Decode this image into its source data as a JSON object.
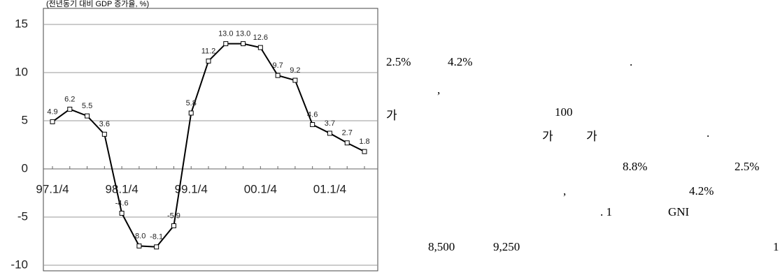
{
  "chart_data": {
    "type": "line",
    "subtitle": "(전년동기 대비 GDP 증가율, %)",
    "categories": [
      "97.1/4",
      null,
      null,
      null,
      "98.1/4",
      null,
      null,
      null,
      "99.1/4",
      null,
      null,
      null,
      "00.1/4",
      null,
      null,
      null,
      "01.1/4",
      null,
      null
    ],
    "series": [
      {
        "name": "GDP",
        "color": "#000000",
        "values": [
          4.9,
          6.2,
          5.5,
          3.6,
          -4.6,
          -8.0,
          -8.1,
          -5.9,
          5.8,
          11.2,
          13.0,
          13.0,
          12.6,
          9.7,
          9.2,
          4.6,
          3.7,
          2.7,
          1.8
        ],
        "value_labels": [
          "4.9",
          "6.2",
          "5.5",
          "3.6",
          "-4.6",
          "-8.0",
          "-8.1",
          "-5.9",
          "5.8",
          "11.2",
          "13.0",
          "13.0",
          "12.6",
          "9.7",
          "9.2",
          "4.6",
          "3.7",
          "2.7",
          "1.8"
        ]
      }
    ],
    "ylim": [
      -10,
      15
    ],
    "yticks": [
      -10,
      -5,
      0,
      5,
      10,
      15
    ],
    "grid": true
  },
  "text": {
    "fragments": [
      "2.5%",
      "4.2%",
      ".",
      ",",
      "가",
      "100",
      "가",
      "가",
      ".",
      "8.8%",
      "2.5%",
      ",",
      "4.2%",
      ". 1",
      "GNI",
      "8,500",
      "9,250",
      "1"
    ]
  }
}
